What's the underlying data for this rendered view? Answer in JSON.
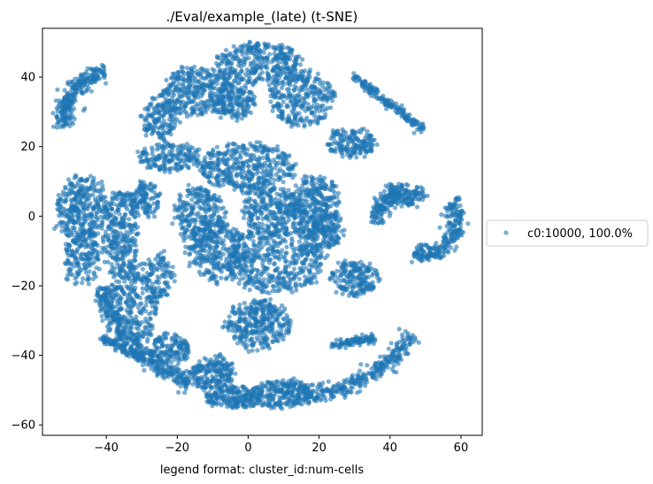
{
  "chart_data": {
    "type": "scatter",
    "title": "./Eval/example_(late) (t-SNE)",
    "xlabel": "legend format:  cluster_id:num-cells",
    "ylabel": "",
    "xlim": [
      -58,
      66
    ],
    "ylim": [
      -63,
      54
    ],
    "xticks": [
      -40,
      -20,
      0,
      20,
      40,
      60
    ],
    "yticks": [
      -60,
      -40,
      -20,
      0,
      20,
      40
    ],
    "xtick_labels": [
      "−40",
      "−20",
      "0",
      "20",
      "40",
      "60"
    ],
    "ytick_labels": [
      "−60",
      "−40",
      "−20",
      "0",
      "20",
      "40"
    ],
    "grid": false,
    "legend_position": "outside-right",
    "series": [
      {
        "name": "c0:10000, 100.0%",
        "color": "#1f77b4",
        "alpha": 0.6,
        "count": 10000,
        "regions": [
          {
            "shape": "arc",
            "cx": -38,
            "cy": 28,
            "r": 14,
            "a0": 100,
            "a1": 190,
            "n": 260
          },
          {
            "shape": "line",
            "x0": 30,
            "y0": 40,
            "x1": 49,
            "y1": 25,
            "n": 170
          },
          {
            "shape": "blob",
            "cx": -25,
            "cy": 28,
            "rx": 5,
            "ry": 6,
            "n": 160
          },
          {
            "shape": "blob",
            "cx": -14,
            "cy": 36,
            "rx": 10,
            "ry": 7,
            "n": 330
          },
          {
            "shape": "blob",
            "cx": 3,
            "cy": 44,
            "rx": 12,
            "ry": 6,
            "n": 340
          },
          {
            "shape": "blob",
            "cx": -4,
            "cy": 33,
            "rx": 6,
            "ry": 5,
            "n": 160
          },
          {
            "shape": "blob",
            "cx": 15,
            "cy": 34,
            "rx": 9,
            "ry": 8,
            "n": 300
          },
          {
            "shape": "blob",
            "cx": 29,
            "cy": 21,
            "rx": 7,
            "ry": 4,
            "n": 170
          },
          {
            "shape": "blob",
            "cx": -22,
            "cy": 17,
            "rx": 9,
            "ry": 4,
            "n": 180
          },
          {
            "shape": "blob",
            "cx": -47,
            "cy": 2,
            "rx": 7,
            "ry": 10,
            "n": 330
          },
          {
            "shape": "blob",
            "cx": -36,
            "cy": -5,
            "rx": 5,
            "ry": 13,
            "n": 300
          },
          {
            "shape": "blob",
            "cx": -47,
            "cy": -12,
            "rx": 5,
            "ry": 8,
            "n": 160
          },
          {
            "shape": "blob",
            "cx": -29,
            "cy": 5,
            "rx": 4,
            "ry": 5,
            "n": 120
          },
          {
            "shape": "blob",
            "cx": -32,
            "cy": -25,
            "rx": 7,
            "ry": 11,
            "n": 280
          },
          {
            "shape": "blob",
            "cx": -25,
            "cy": -17,
            "rx": 4,
            "ry": 6,
            "n": 100
          },
          {
            "shape": "blob",
            "cx": -22,
            "cy": -38,
            "rx": 6,
            "ry": 4,
            "n": 140
          },
          {
            "shape": "blob",
            "cx": -14,
            "cy": 0,
            "rx": 7,
            "ry": 9,
            "n": 260
          },
          {
            "shape": "blob",
            "cx": -9,
            "cy": -10,
            "rx": 8,
            "ry": 9,
            "n": 300
          },
          {
            "shape": "blob",
            "cx": 0,
            "cy": 14,
            "rx": 14,
            "ry": 7,
            "n": 420
          },
          {
            "shape": "blob",
            "cx": 7,
            "cy": 2,
            "rx": 9,
            "ry": 6,
            "n": 240
          },
          {
            "shape": "blob",
            "cx": 8,
            "cy": -12,
            "rx": 14,
            "ry": 10,
            "n": 520
          },
          {
            "shape": "blob",
            "cx": 19,
            "cy": 3,
            "rx": 7,
            "ry": 9,
            "n": 300
          },
          {
            "shape": "blob",
            "cx": 22,
            "cy": -4,
            "rx": 5,
            "ry": 5,
            "n": 130
          },
          {
            "shape": "blob",
            "cx": 3,
            "cy": -31,
            "rx": 9,
            "ry": 7,
            "n": 330
          },
          {
            "shape": "blob",
            "cx": 30,
            "cy": -18,
            "rx": 7,
            "ry": 5,
            "n": 190
          },
          {
            "shape": "blob",
            "cx": 44,
            "cy": 6,
            "rx": 6,
            "ry": 3,
            "n": 130
          },
          {
            "shape": "arc",
            "cx": 47,
            "cy": -3,
            "r": 11,
            "a0": 110,
            "a1": 175,
            "n": 140
          },
          {
            "shape": "arc",
            "cx": 50,
            "cy": -2,
            "r": 9,
            "a0": -110,
            "a1": 40,
            "n": 240
          },
          {
            "shape": "arc",
            "cx": -3,
            "cy": -10,
            "r": 40,
            "a0": 195,
            "a1": 250,
            "n": 380
          },
          {
            "shape": "blob",
            "cx": -10,
            "cy": -45,
            "rx": 6,
            "ry": 5,
            "n": 200
          },
          {
            "shape": "blob",
            "cx": -4,
            "cy": -52,
            "rx": 8,
            "ry": 3,
            "n": 200
          },
          {
            "shape": "blob",
            "cx": 9,
            "cy": -51,
            "rx": 9,
            "ry": 4,
            "n": 240
          },
          {
            "shape": "arc",
            "cx": 12,
            "cy": -10,
            "r": 42,
            "a0": 275,
            "a1": 325,
            "n": 300
          },
          {
            "shape": "line",
            "x0": 24,
            "y0": -37,
            "x1": 36,
            "y1": -35,
            "n": 100
          },
          {
            "shape": "line",
            "x0": -41,
            "y0": -35,
            "x1": -30,
            "y1": -41,
            "n": 120
          }
        ]
      }
    ]
  }
}
